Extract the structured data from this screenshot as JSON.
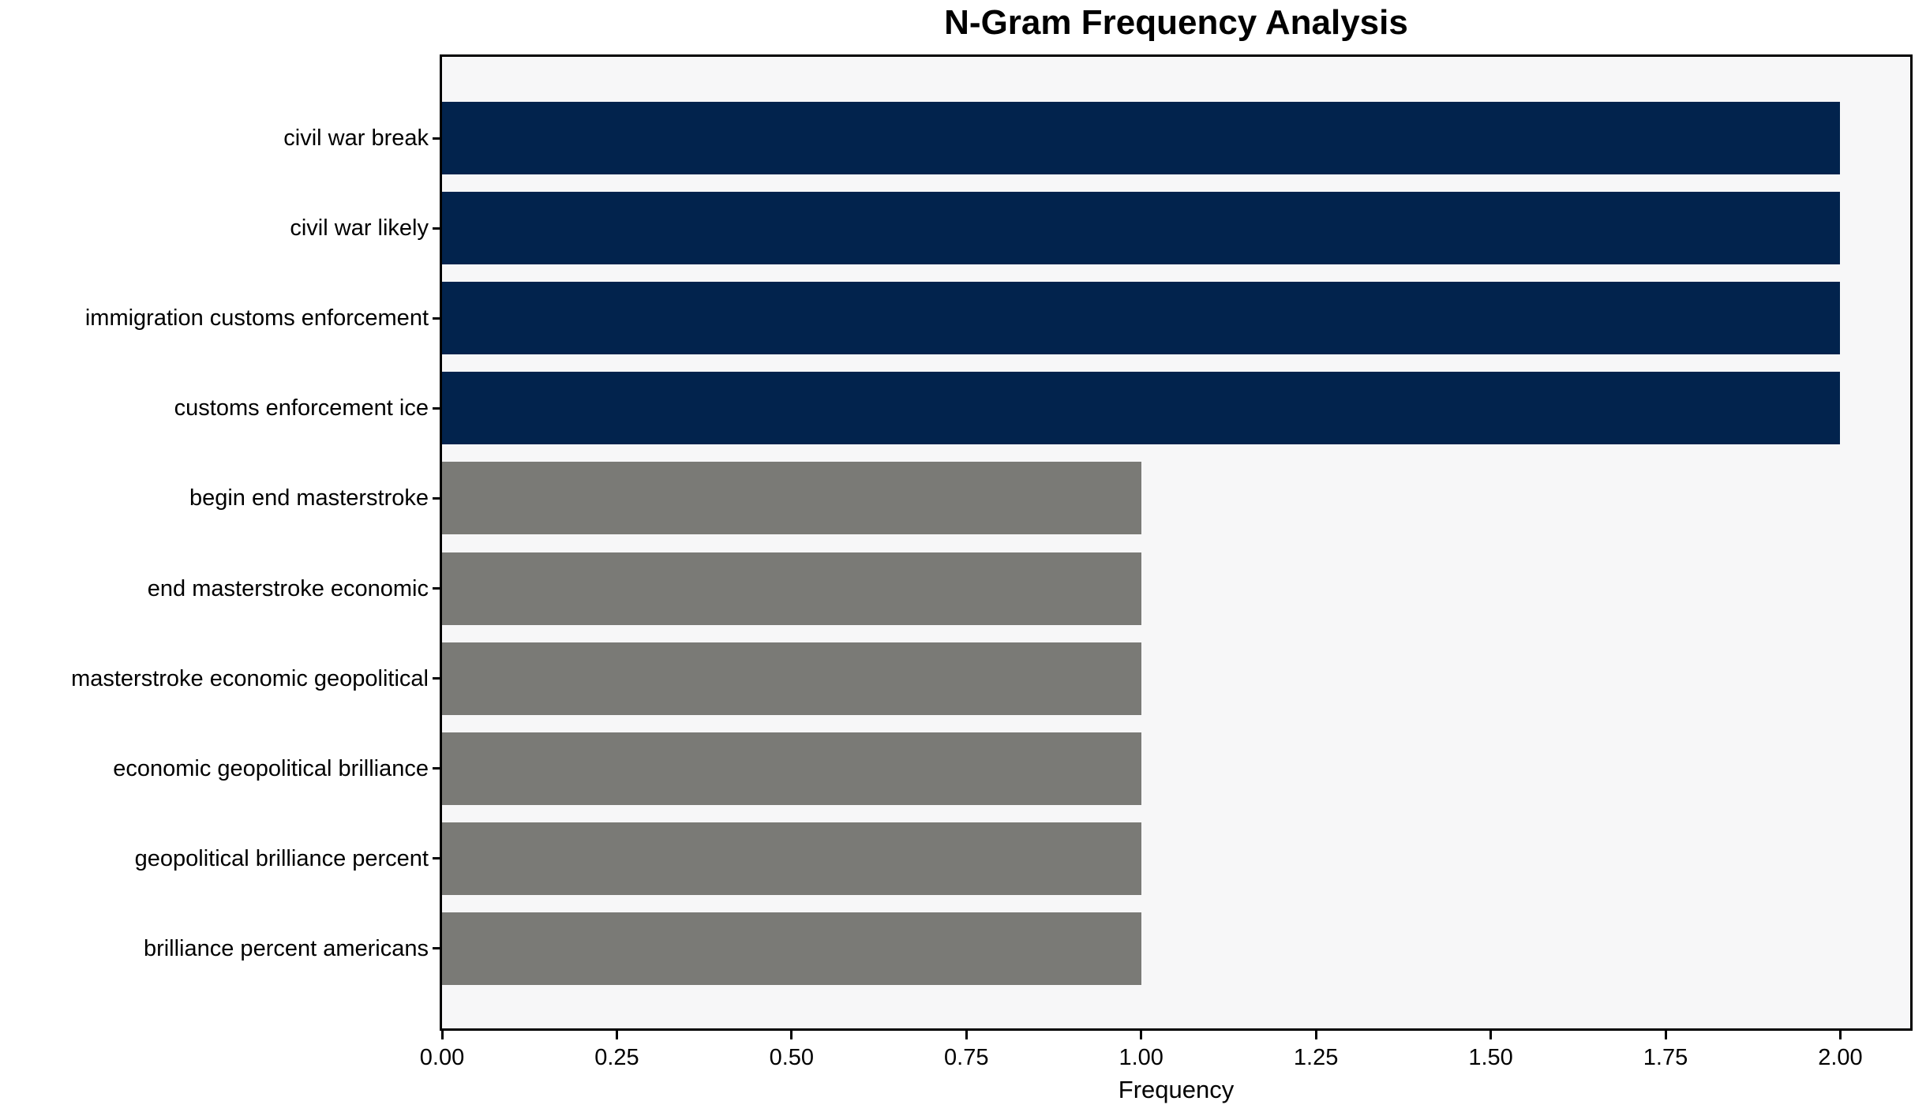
{
  "chart_data": {
    "type": "bar",
    "orientation": "horizontal",
    "title": "N-Gram Frequency Analysis",
    "xlabel": "Frequency",
    "ylabel": "",
    "categories": [
      "civil war break",
      "civil war likely",
      "immigration customs enforcement",
      "customs enforcement ice",
      "begin end masterstroke",
      "end masterstroke economic",
      "masterstroke economic geopolitical",
      "economic geopolitical brilliance",
      "geopolitical brilliance percent",
      "brilliance percent americans"
    ],
    "values": [
      2,
      2,
      2,
      2,
      1,
      1,
      1,
      1,
      1,
      1
    ],
    "bar_colors": [
      "#02234d",
      "#02234d",
      "#02234d",
      "#02234d",
      "#7a7a76",
      "#7a7a76",
      "#7a7a76",
      "#7a7a76",
      "#7a7a76",
      "#7a7a76"
    ],
    "xlim": [
      0,
      2.1
    ],
    "x_tick_values": [
      0,
      0.25,
      0.5,
      0.75,
      1.0,
      1.25,
      1.5,
      1.75,
      2.0
    ],
    "x_tick_labels": [
      "0.00",
      "0.25",
      "0.50",
      "0.75",
      "1.00",
      "1.25",
      "1.50",
      "1.75",
      "2.00"
    ],
    "grid": false,
    "legend": "none",
    "colors": {
      "bar_primary": "#02234d",
      "bar_secondary": "#7a7a76",
      "plot_background": "#f7f7f8",
      "figure_background": "#ffffff",
      "axis": "#000000",
      "text": "#000000"
    }
  }
}
